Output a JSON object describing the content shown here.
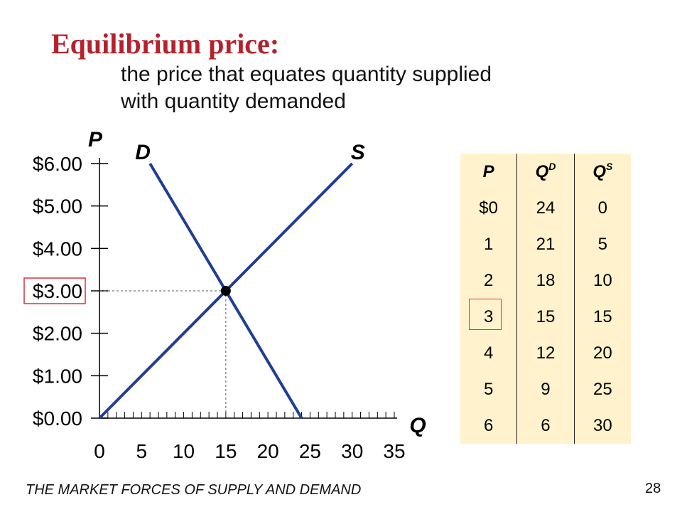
{
  "slide": {
    "title": "Equilibrium price:",
    "subtitle_line1": "the price that equates quantity supplied",
    "subtitle_line2": "with quantity demanded",
    "footer": "THE MARKET FORCES OF SUPPLY AND DEMAND",
    "page_number": "28"
  },
  "chart_data": {
    "type": "line",
    "ylabel": "P",
    "xlabel": "Q",
    "xlim": [
      0,
      35
    ],
    "ylim": [
      0,
      6
    ],
    "x_ticks": [
      "0",
      "5",
      "10",
      "15",
      "20",
      "25",
      "30",
      "35"
    ],
    "y_ticks": [
      "$0.00",
      "$1.00",
      "$2.00",
      "$3.00",
      "$4.00",
      "$5.00",
      "$6.00"
    ],
    "series": [
      {
        "name": "D",
        "color": "#1f3e93",
        "points": [
          [
            24,
            0
          ],
          [
            6,
            6
          ]
        ]
      },
      {
        "name": "S",
        "color": "#1f3e93",
        "points": [
          [
            0,
            0
          ],
          [
            30,
            6
          ]
        ]
      }
    ],
    "equilibrium": {
      "q": 15,
      "p": 3
    },
    "highlighted_tick": "$3.00"
  },
  "table": {
    "headers": {
      "p": "P",
      "qd_base": "Q",
      "qd_sup": "D",
      "qs_base": "Q",
      "qs_sup": "S"
    },
    "rows": [
      {
        "p": "$0",
        "qd": "24",
        "qs": "0"
      },
      {
        "p": "1",
        "qd": "21",
        "qs": "5"
      },
      {
        "p": "2",
        "qd": "18",
        "qs": "10"
      },
      {
        "p": "3",
        "qd": "15",
        "qs": "15"
      },
      {
        "p": "4",
        "qd": "12",
        "qs": "20"
      },
      {
        "p": "5",
        "qd": "9",
        "qs": "25"
      },
      {
        "p": "6",
        "qd": "6",
        "qs": "30"
      }
    ],
    "highlighted_row": 3
  },
  "colors": {
    "title": "#b5222c",
    "curve": "#1f3e93",
    "highlight": "#d9333f",
    "table_bg": "#fff2cc"
  }
}
